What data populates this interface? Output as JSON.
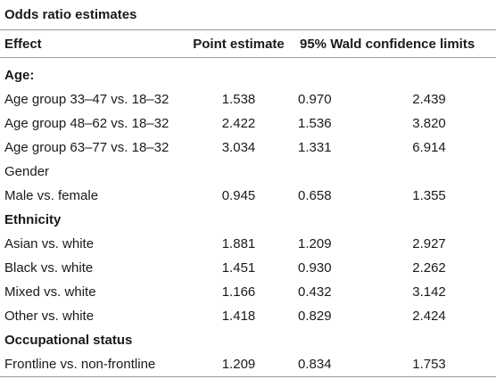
{
  "table": {
    "title": "Odds ratio estimates",
    "headers": {
      "effect": "Effect",
      "point_estimate": "Point estimate",
      "confidence": "95% Wald confidence limits"
    },
    "rows": [
      {
        "type": "section",
        "label": "Age:"
      },
      {
        "type": "data",
        "label": "Age group 33–47 vs. 18–32",
        "pe": "1.538",
        "lo": "0.970",
        "hi": "2.439"
      },
      {
        "type": "data",
        "label": "Age group 48–62 vs. 18–32",
        "pe": "2.422",
        "lo": "1.536",
        "hi": "3.820"
      },
      {
        "type": "data",
        "label": "Age group 63–77 vs. 18–32",
        "pe": "3.034",
        "lo": "1.331",
        "hi": "6.914"
      },
      {
        "type": "plain",
        "label": "Gender"
      },
      {
        "type": "data",
        "label": "Male vs. female",
        "pe": "0.945",
        "lo": "0.658",
        "hi": "1.355"
      },
      {
        "type": "section",
        "label": "Ethnicity"
      },
      {
        "type": "data",
        "label": "Asian vs. white",
        "pe": "1.881",
        "lo": "1.209",
        "hi": "2.927"
      },
      {
        "type": "data",
        "label": "Black vs. white",
        "pe": "1.451",
        "lo": "0.930",
        "hi": "2.262"
      },
      {
        "type": "data",
        "label": "Mixed vs. white",
        "pe": "1.166",
        "lo": "0.432",
        "hi": "3.142"
      },
      {
        "type": "data",
        "label": "Other vs. white",
        "pe": "1.418",
        "lo": "0.829",
        "hi": "2.424"
      },
      {
        "type": "section",
        "label": "Occupational status"
      },
      {
        "type": "data",
        "label": "Frontline vs. non-frontline",
        "pe": "1.209",
        "lo": "0.834",
        "hi": "1.753"
      }
    ]
  }
}
